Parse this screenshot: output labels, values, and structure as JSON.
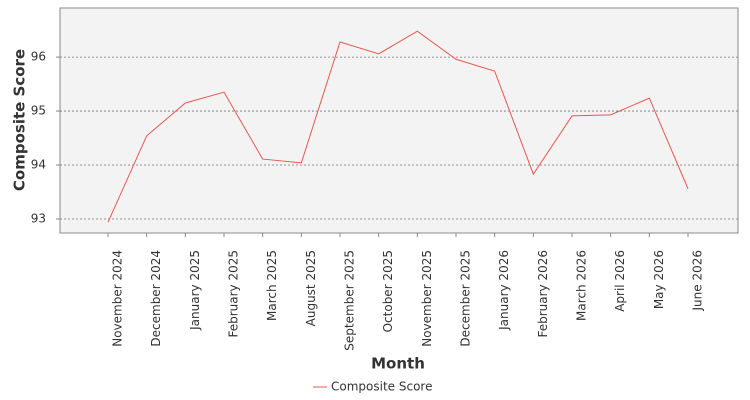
{
  "chart_data": {
    "type": "line",
    "x_label": "Month",
    "y_label": "Composite Score",
    "categories": [
      "November 2024",
      "December 2024",
      "January 2025",
      "February 2025",
      "March 2025",
      "August 2025",
      "September 2025",
      "October 2025",
      "November 2025",
      "December 2025",
      "January 2026",
      "February 2026",
      "March 2026",
      "April 2026",
      "May 2026",
      "June 2026"
    ],
    "series": [
      {
        "name": "Composite Score",
        "color": "#e8574f",
        "values": [
          92.94,
          94.54,
          95.15,
          95.35,
          94.11,
          94.04,
          96.28,
          96.06,
          96.48,
          95.96,
          95.74,
          93.83,
          94.91,
          94.93,
          95.24,
          93.56
        ]
      }
    ],
    "ylim": [
      92.74,
      96.91
    ],
    "yticks": [
      93,
      94,
      95,
      96
    ],
    "grid": true,
    "legend": "bottom"
  }
}
